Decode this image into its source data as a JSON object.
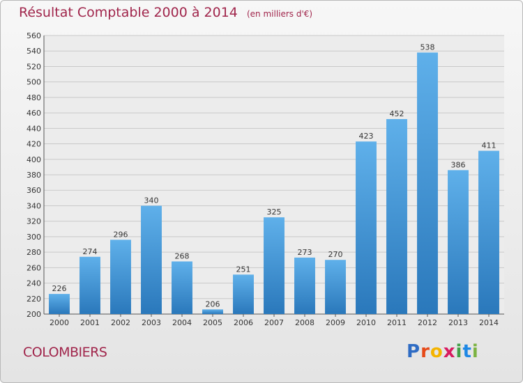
{
  "chart_data": {
    "type": "bar",
    "title": "Résultat Comptable 2000 à 2014",
    "subtitle": "(en milliers d'€)",
    "categories": [
      "2000",
      "2001",
      "2002",
      "2003",
      "2004",
      "2005",
      "2006",
      "2007",
      "2008",
      "2009",
      "2010",
      "2011",
      "2012",
      "2013",
      "2014"
    ],
    "values": [
      226,
      274,
      296,
      340,
      268,
      206,
      251,
      325,
      273,
      270,
      423,
      452,
      538,
      386,
      411
    ],
    "ylim": [
      200,
      560
    ],
    "yticks": [
      200,
      220,
      240,
      260,
      280,
      300,
      320,
      340,
      360,
      380,
      400,
      420,
      440,
      460,
      480,
      500,
      520,
      540,
      560
    ],
    "grid": true,
    "xlabel": "",
    "ylabel": ""
  },
  "commune": "COLOMBIERS",
  "logo": {
    "letters": [
      "P",
      "r",
      "o",
      "x",
      "i",
      "t",
      "i"
    ],
    "colors": [
      "#2f6cc4",
      "#e64a19",
      "#f4b400",
      "#d81b60",
      "#43a047",
      "#1e88e5",
      "#7cb342"
    ]
  },
  "colors": {
    "title": "#a0254b",
    "bar_light": "#5fb0ea",
    "bar_dark": "#2a78bb",
    "grid": "#c9c9c9"
  }
}
